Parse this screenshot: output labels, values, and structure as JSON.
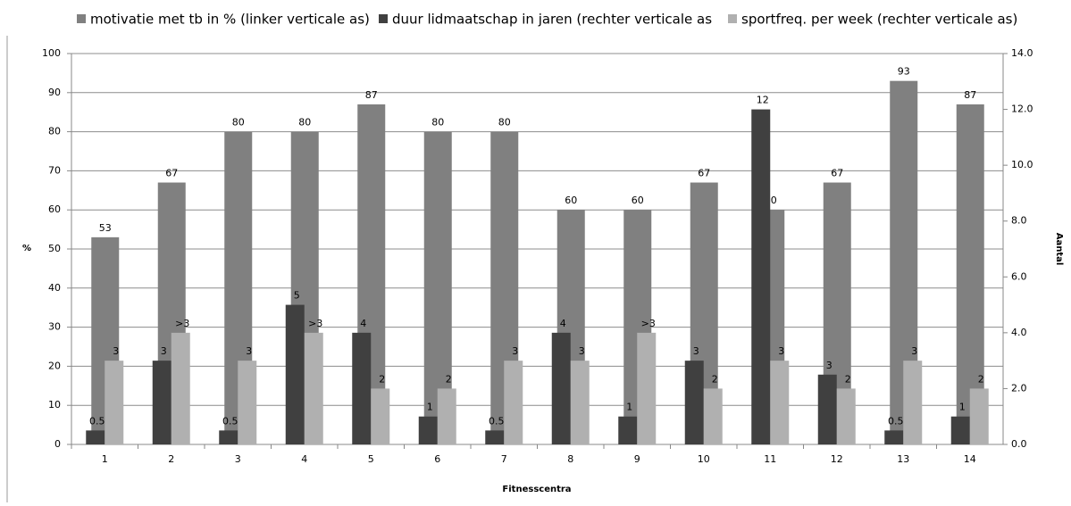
{
  "chart_data": {
    "type": "bar",
    "x_label": "Fitnesscentra",
    "y_label": "%",
    "y2_label": "Aantal",
    "categories": [
      "1",
      "2",
      "3",
      "4",
      "5",
      "6",
      "7",
      "8",
      "9",
      "10",
      "11",
      "12",
      "13",
      "14"
    ],
    "series": [
      {
        "name": "motivatie met tb in % (linker verticale as)",
        "color": "#808080",
        "values": [
          53,
          67,
          80,
          80,
          87,
          80,
          80,
          60,
          60,
          67,
          60,
          67,
          93,
          87
        ]
      },
      {
        "name": "duur lidmaatschap in jaren (rechter verticale as",
        "color": "#404040",
        "axis": "y2",
        "values": [
          0.5,
          3,
          0.5,
          5,
          4,
          1,
          0.5,
          4,
          1,
          3,
          12,
          2.5,
          0.5,
          1
        ],
        "value_labels": [
          "0.5",
          "3",
          "0.5",
          "5",
          "4",
          "1",
          "0.5",
          "4",
          "1",
          "3",
          "12",
          "3",
          "0.5",
          "1"
        ]
      },
      {
        "name": "sportfreq. per week (rechter  verticale as)",
        "color": "#b0b0b0",
        "axis": "y2",
        "values": [
          3,
          4,
          3,
          4,
          2,
          2,
          3,
          3,
          4,
          2,
          3,
          2,
          3,
          2
        ],
        "value_labels": [
          "3",
          ">3",
          "3",
          ">3",
          "2",
          "2",
          "3",
          "3",
          ">3",
          "2",
          "3",
          "2",
          "3",
          "2"
        ]
      }
    ],
    "ylim": [
      0,
      100
    ],
    "yticks": [
      0,
      10,
      20,
      30,
      40,
      50,
      60,
      70,
      80,
      90,
      100
    ],
    "y2lim": [
      0,
      14
    ],
    "y2ticks": [
      {
        "value": 0,
        "label": "0.0"
      },
      {
        "value": 2,
        "label": "2.0"
      },
      {
        "value": 4,
        "label": "4.0"
      },
      {
        "value": 6,
        "label": "6.0"
      },
      {
        "value": 8,
        "label": "8.0"
      },
      {
        "value": 10,
        "label": "10.0"
      },
      {
        "value": 12,
        "label": "12.0"
      },
      {
        "value": 14,
        "label": "14.0"
      }
    ],
    "grid": true,
    "legend": "top"
  }
}
